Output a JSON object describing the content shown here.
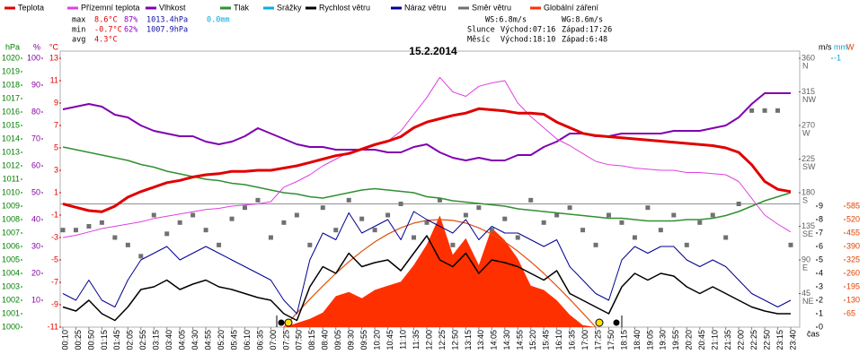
{
  "chart_data": {
    "type": "line",
    "title": "15.2.2014",
    "x_label": "čas",
    "categories": [
      "00:10",
      "00:25",
      "00:50",
      "01:15",
      "01:45",
      "02:05",
      "02:55",
      "03:15",
      "03:40",
      "04:05",
      "04:30",
      "04:55",
      "05:20",
      "05:45",
      "06:10",
      "06:35",
      "07:00",
      "07:25",
      "07:50",
      "08:15",
      "08:40",
      "09:05",
      "09:30",
      "09:55",
      "10:20",
      "10:45",
      "11:10",
      "11:35",
      "12:00",
      "12:25",
      "12:50",
      "13:15",
      "13:40",
      "14:05",
      "14:30",
      "14:55",
      "15:20",
      "15:45",
      "16:10",
      "16:35",
      "17:00",
      "17:25",
      "17:50",
      "18:15",
      "18:40",
      "19:05",
      "19:30",
      "19:55",
      "20:20",
      "20:45",
      "21:10",
      "21:35",
      "22:00",
      "22:25",
      "22:50",
      "23:15",
      "23:40"
    ],
    "stats": [
      [
        "max",
        "8.6°C",
        "87%",
        "1013.4hPa",
        "0.0mm"
      ],
      [
        "min",
        "-0.7°C",
        "62%",
        "1007.9hPa"
      ],
      [
        "avg",
        "4.3°C"
      ]
    ],
    "stats_colors": [
      "#000000",
      "#e00000",
      "#9000c0",
      "#1010a0",
      "#00a8d8"
    ],
    "sun_info": [
      [
        "WS:6.8m/s",
        "WG:8.6m/s"
      ],
      [
        "Slunce",
        "Východ:07:16",
        "Západ:17:26"
      ],
      [
        "Měsíc",
        "Východ:18:10",
        "Západ:6:48"
      ]
    ],
    "axes": {
      "hpa": {
        "title": "hPa",
        "color": "#008000",
        "lim": [
          1000,
          1020
        ],
        "ticks": [
          1000,
          1001,
          1002,
          1003,
          1004,
          1005,
          1006,
          1007,
          1008,
          1009,
          1010,
          1011,
          1012,
          1013,
          1014,
          1015,
          1016,
          1017,
          1018,
          1019,
          1020
        ]
      },
      "pct": {
        "title": "%",
        "color": "#8000a0",
        "lim": [
          0,
          100
        ],
        "ticks": [
          10,
          20,
          30,
          40,
          50,
          60,
          70,
          80,
          90,
          100
        ]
      },
      "temp": {
        "title": "°C",
        "color": "#e00000",
        "lim": [
          -11,
          13
        ],
        "ticks": [
          -11,
          -9,
          -7,
          -5,
          -3,
          -1,
          1,
          3,
          5,
          7,
          9,
          11,
          13
        ],
        "ref_line": 0
      },
      "dir": {
        "title": null,
        "color": "#606060",
        "lim": [
          0,
          360
        ],
        "ticks": [
          {
            "value": 45,
            "label": "45"
          },
          {
            "value": 90,
            "label": "90"
          },
          {
            "value": 135,
            "label": "135"
          },
          {
            "value": 180,
            "label": "180"
          },
          {
            "value": 225,
            "label": "225"
          },
          {
            "value": 270,
            "label": "270"
          },
          {
            "value": 315,
            "label": "315"
          },
          {
            "value": 360,
            "label": "360"
          }
        ],
        "compass": [
          "NE",
          "E",
          "SE",
          "S",
          "SW",
          "W",
          "NW",
          "N"
        ]
      },
      "ms": {
        "title": "m/s",
        "color": "#000000",
        "lim": [
          0,
          20
        ],
        "ticks": [
          0,
          1,
          2,
          3,
          4,
          5,
          6,
          7,
          8,
          9
        ]
      },
      "mm": {
        "title": "mm",
        "color": "#00a8d8",
        "lim": [
          0,
          -1
        ],
        "ticks": [
          -1
        ]
      },
      "w": {
        "title": "W",
        "color": "#e04000",
        "lim": [
          0,
          1300
        ],
        "ticks": [
          65,
          130,
          195,
          260,
          325,
          390,
          455,
          520,
          585
        ]
      }
    },
    "series": [
      {
        "name": "Teplota",
        "color": "#e00000",
        "axis": "temp",
        "style": "line",
        "width": 3,
        "values": [
          0.0,
          -0.3,
          -0.6,
          -0.7,
          -0.2,
          0.6,
          1.1,
          1.5,
          1.9,
          2.1,
          2.4,
          2.6,
          2.7,
          2.9,
          2.9,
          3.0,
          3.0,
          3.2,
          3.4,
          3.7,
          4.0,
          4.3,
          4.5,
          4.9,
          5.3,
          5.6,
          6.0,
          6.8,
          7.3,
          7.6,
          7.9,
          8.1,
          8.5,
          8.4,
          8.3,
          8.1,
          8.1,
          8.0,
          7.3,
          6.8,
          6.3,
          6.1,
          6.0,
          5.9,
          5.8,
          5.7,
          5.6,
          5.5,
          5.4,
          5.3,
          5.2,
          5.0,
          4.6,
          3.5,
          2.0,
          1.3,
          1.1
        ]
      },
      {
        "name": "Přízemní teplota",
        "color": "#e040e0",
        "axis": "temp",
        "style": "line",
        "width": 1,
        "values": [
          -3.0,
          -2.8,
          -2.5,
          -2.2,
          -2.0,
          -1.8,
          -1.6,
          -1.3,
          -1.1,
          -0.9,
          -0.7,
          -0.5,
          -0.4,
          -0.2,
          -0.1,
          0.0,
          0.2,
          1.5,
          2.0,
          2.6,
          3.4,
          4.0,
          4.6,
          4.8,
          5.2,
          5.6,
          6.5,
          8.0,
          9.5,
          11.3,
          10.0,
          9.6,
          10.5,
          10.8,
          11.0,
          9.0,
          7.8,
          6.8,
          5.8,
          5.2,
          4.5,
          3.8,
          3.5,
          3.4,
          3.2,
          3.1,
          3.0,
          3.0,
          2.8,
          2.8,
          2.7,
          2.6,
          2.0,
          0.5,
          -1.0,
          -1.8,
          -2.5
        ]
      },
      {
        "name": "Vlhkost",
        "color": "#8000b0",
        "axis": "pct",
        "style": "line",
        "width": 2,
        "values": [
          81,
          82,
          83,
          82,
          79,
          78,
          75,
          73,
          72,
          71,
          71,
          69,
          68,
          69,
          71,
          74,
          72,
          70,
          68,
          67,
          67,
          66,
          66,
          66,
          66,
          65,
          65,
          67,
          68,
          65,
          63,
          62,
          63,
          62,
          62,
          64,
          64,
          67,
          69,
          72,
          72,
          71,
          71,
          72,
          72,
          72,
          72,
          73,
          73,
          73,
          74,
          75,
          78,
          83,
          87,
          87,
          87
        ]
      },
      {
        "name": "Tlak",
        "color": "#309030",
        "axis": "hpa",
        "style": "line",
        "width": 1.5,
        "values": [
          1013.4,
          1013.2,
          1013.0,
          1012.8,
          1012.6,
          1012.4,
          1012.1,
          1011.9,
          1011.6,
          1011.4,
          1011.2,
          1011.0,
          1010.9,
          1010.7,
          1010.6,
          1010.4,
          1010.2,
          1010.0,
          1009.9,
          1009.7,
          1009.6,
          1009.8,
          1010.0,
          1010.2,
          1010.3,
          1010.2,
          1010.1,
          1010.0,
          1009.7,
          1009.6,
          1009.4,
          1009.3,
          1009.2,
          1009.1,
          1009.0,
          1008.8,
          1008.7,
          1008.6,
          1008.5,
          1008.4,
          1008.3,
          1008.2,
          1008.1,
          1008.1,
          1008.0,
          1007.9,
          1007.9,
          1007.9,
          1008.0,
          1008.0,
          1008.1,
          1008.3,
          1008.6,
          1009.0,
          1009.4,
          1009.7,
          1010.0
        ]
      },
      {
        "name": "Srážky",
        "color": "#00b0e0",
        "axis": "mm",
        "style": "line",
        "width": 1
      },
      {
        "name": "Rychlost větru",
        "color": "#000000",
        "axis": "ms",
        "style": "line",
        "width": 1.5,
        "values": [
          1.5,
          1.2,
          2.0,
          1.0,
          0.5,
          1.5,
          2.8,
          3.0,
          3.5,
          2.8,
          3.2,
          3.5,
          3.0,
          2.8,
          2.5,
          2.2,
          2.0,
          1.0,
          0.5,
          3.0,
          4.5,
          4.0,
          5.5,
          4.5,
          4.8,
          5.0,
          4.2,
          5.5,
          6.8,
          5.0,
          4.5,
          5.5,
          4.0,
          5.0,
          4.8,
          4.5,
          4.0,
          3.5,
          4.2,
          2.5,
          2.0,
          1.5,
          1.0,
          3.0,
          4.0,
          3.5,
          4.0,
          3.8,
          3.0,
          2.5,
          3.0,
          2.5,
          2.0,
          1.5,
          1.2,
          1.0,
          1.0
        ]
      },
      {
        "name": "Náraz větru",
        "color": "#000090",
        "axis": "ms",
        "style": "line",
        "width": 1,
        "values": [
          2.5,
          2.0,
          3.5,
          2.0,
          1.5,
          3.5,
          5.0,
          5.5,
          6.0,
          5.0,
          5.5,
          6.0,
          5.5,
          5.0,
          4.5,
          4.0,
          3.5,
          2.0,
          1.0,
          5.0,
          7.0,
          6.5,
          8.5,
          7.0,
          7.5,
          8.0,
          6.5,
          8.6,
          8.0,
          7.5,
          7.0,
          8.0,
          6.5,
          7.5,
          7.0,
          7.0,
          6.5,
          6.0,
          6.5,
          4.5,
          3.5,
          2.5,
          2.0,
          5.0,
          6.0,
          5.5,
          6.0,
          6.0,
          5.0,
          4.5,
          5.0,
          4.5,
          3.5,
          2.5,
          2.0,
          1.5,
          2.0
        ]
      },
      {
        "name": "Směr větru",
        "color": "#707070",
        "axis": "dir",
        "style": "scatter",
        "values": [
          130,
          130,
          135,
          140,
          120,
          110,
          95,
          150,
          125,
          140,
          150,
          130,
          110,
          145,
          160,
          170,
          120,
          140,
          150,
          110,
          160,
          130,
          170,
          145,
          130,
          150,
          165,
          120,
          140,
          170,
          110,
          150,
          160,
          130,
          145,
          120,
          170,
          140,
          150,
          160,
          130,
          110,
          150,
          140,
          120,
          160,
          130,
          150,
          110,
          140,
          150,
          120,
          165,
          290,
          290,
          290,
          110
        ]
      },
      {
        "name": "Globální záření",
        "color": "#ff3000",
        "axis": "w",
        "style": "area",
        "values": [
          0,
          0,
          0,
          0,
          0,
          0,
          0,
          0,
          0,
          0,
          0,
          0,
          0,
          0,
          0,
          0,
          0,
          0,
          20,
          40,
          70,
          150,
          170,
          140,
          180,
          200,
          220,
          300,
          400,
          540,
          350,
          430,
          300,
          480,
          420,
          330,
          200,
          180,
          130,
          60,
          10,
          0,
          0,
          0,
          0,
          0,
          0,
          0,
          0,
          0,
          0,
          0,
          0,
          0,
          0,
          0,
          0
        ]
      }
    ],
    "max_radiation": {
      "color": "#e05010",
      "axis": "w",
      "values": [
        null,
        null,
        null,
        null,
        null,
        null,
        null,
        null,
        null,
        null,
        null,
        null,
        null,
        null,
        null,
        null,
        null,
        0,
        68,
        135,
        199,
        260,
        316,
        367,
        412,
        450,
        480,
        503,
        516,
        520,
        516,
        503,
        480,
        450,
        412,
        367,
        316,
        260,
        199,
        135,
        68,
        0,
        null,
        null,
        null,
        null,
        null,
        null,
        null,
        null,
        null,
        null,
        null,
        null,
        null,
        null,
        null
      ]
    }
  }
}
